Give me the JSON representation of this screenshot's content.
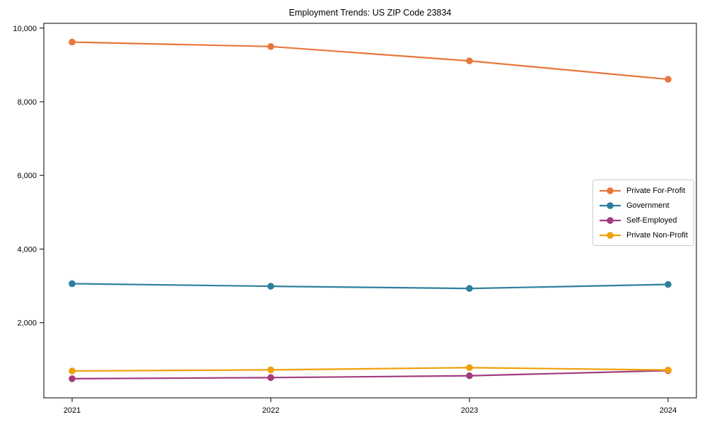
{
  "chart_data": {
    "type": "line",
    "title": "Employment Trends: US ZIP Code 23834",
    "x": [
      2021,
      2022,
      2023,
      2024
    ],
    "x_tick_labels": [
      "2021",
      "2022",
      "2023",
      "2024"
    ],
    "series": [
      {
        "name": "Private For-Profit",
        "color": "#e8763c",
        "values": [
          9620,
          9500,
          9110,
          8610
        ]
      },
      {
        "name": "Government",
        "color": "#2e7f9e",
        "values": [
          3060,
          2990,
          2930,
          3040
        ]
      },
      {
        "name": "Self-Employed",
        "color": "#a23b7e",
        "values": [
          480,
          510,
          560,
          700
        ]
      },
      {
        "name": "Private Non-Profit",
        "color": "#f0a00a",
        "values": [
          690,
          720,
          780,
          715
        ]
      }
    ],
    "ylim": [
      -40,
      10130
    ],
    "yticks": [
      2000,
      4000,
      6000,
      8000,
      10000
    ],
    "ytick_labels": [
      "2,000",
      "4,000",
      "6,000",
      "8,000",
      "10,000"
    ],
    "xlabel": "",
    "ylabel": "",
    "grid": false,
    "legend_position": "center-right",
    "marker": "circle",
    "background_color": "#ffffff",
    "axis_color": "#000000"
  }
}
